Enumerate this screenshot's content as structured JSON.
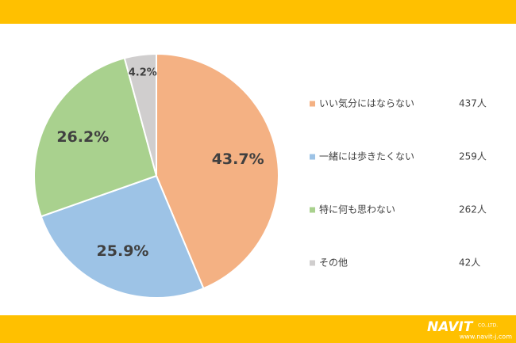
{
  "chart_data": {
    "type": "pie",
    "categories": [
      "いい気分にはならない",
      "一緒には歩きたくない",
      "特に何も思わない",
      "その他"
    ],
    "values": [
      43.7,
      25.9,
      26.2,
      4.2
    ],
    "value_labels": [
      "43.7%",
      "25.9%",
      "26.2%",
      "4.2%"
    ],
    "colors": [
      "#f4b183",
      "#9dc3e6",
      "#a9d18e",
      "#d0cece"
    ],
    "counts": [
      "437人",
      "259人",
      "262人",
      "42人"
    ],
    "legend": "right"
  },
  "footer": {
    "logo": "NAVIT",
    "company": "CO.,LTD.",
    "url": "www.navit-j.com"
  }
}
